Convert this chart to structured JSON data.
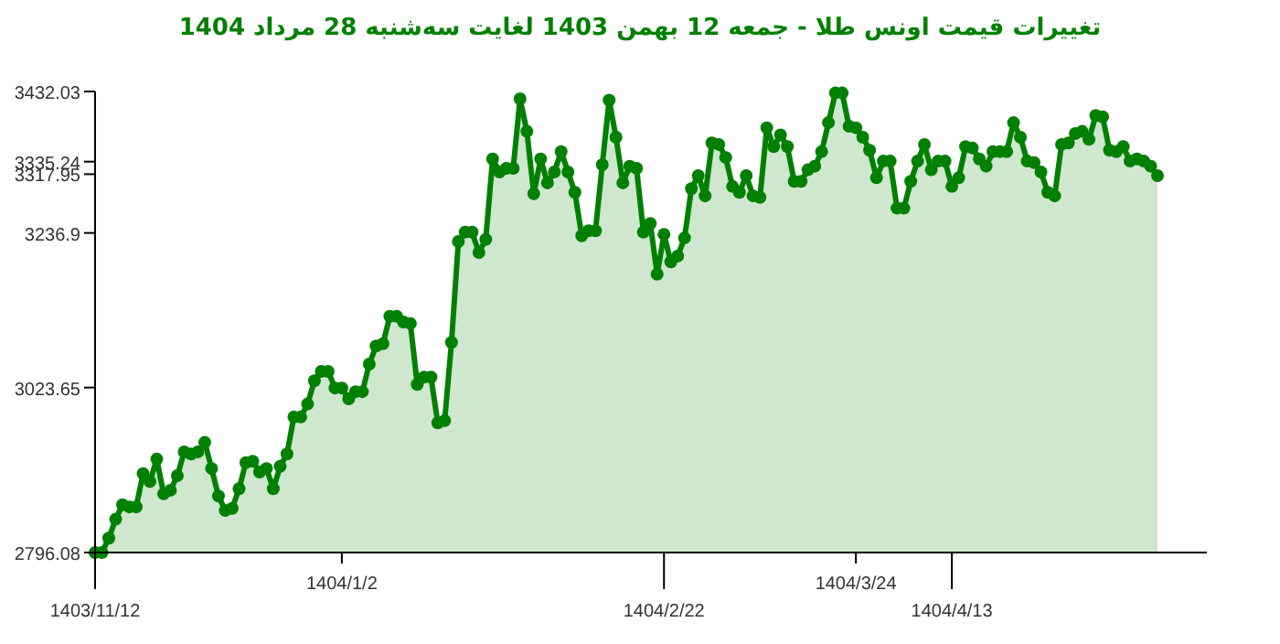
{
  "chart_data": {
    "type": "area",
    "title": "تغییرات قیمت اونس طلا - جمعه  12 بهمن 1403 لغایت سه‌شنبه  28 مرداد 1404",
    "categories": [
      "1403/11/12",
      null,
      null,
      null,
      null,
      null,
      null,
      null,
      null,
      null,
      null,
      null,
      null,
      null,
      null,
      null,
      null,
      null,
      null,
      null,
      null,
      null,
      null,
      null,
      null,
      null,
      null,
      null,
      null,
      null,
      null,
      null,
      null,
      null,
      null,
      null,
      "1404/1/2",
      null,
      null,
      null,
      null,
      null,
      null,
      null,
      null,
      null,
      null,
      null,
      null,
      null,
      null,
      null,
      null,
      null,
      null,
      null,
      null,
      null,
      null,
      null,
      null,
      null,
      null,
      null,
      null,
      null,
      null,
      null,
      null,
      null,
      null,
      null,
      null,
      null,
      null,
      null,
      null,
      null,
      null,
      null,
      null,
      null,
      null,
      "1404/2/22",
      null,
      null,
      null,
      null,
      null,
      null,
      null,
      null,
      null,
      null,
      null,
      null,
      null,
      null,
      null,
      null,
      null,
      null,
      null,
      null,
      null,
      null,
      null,
      null,
      null,
      null,
      null,
      "1404/3/24",
      null,
      null,
      null,
      null,
      null,
      null,
      null,
      null,
      null,
      null,
      null,
      null,
      null,
      "1404/4/13",
      null,
      null,
      null,
      null,
      null,
      null,
      null,
      null,
      null,
      null,
      null,
      null,
      null,
      null,
      null,
      null,
      null,
      null,
      null,
      null,
      null,
      null,
      null,
      null,
      null,
      null,
      null,
      null,
      null,
      null
    ],
    "series": [
      {
        "color": "#008000",
        "values": [
          2796.1,
          2796.1,
          2816,
          2842,
          2862,
          2859,
          2859,
          2905,
          2894,
          2925,
          2877,
          2882,
          2902,
          2935,
          2932,
          2935,
          2948,
          2912,
          2874,
          2854,
          2857,
          2884,
          2920,
          2922,
          2907,
          2912,
          2884,
          2915,
          2932,
          2983,
          2983,
          3001,
          3033,
          3046,
          3046,
          3023,
          3023,
          3008,
          3018,
          3018,
          3056,
          3081,
          3084,
          3122,
          3122,
          3114,
          3112,
          3028,
          3038,
          3038,
          2975,
          2978,
          3086,
          3225,
          3238,
          3238,
          3210,
          3228,
          3339,
          3321,
          3326,
          3326,
          3422,
          3377,
          3291,
          3339,
          3306,
          3321,
          3349,
          3321,
          3293,
          3233,
          3240,
          3240,
          3331,
          3420,
          3369,
          3306,
          3329,
          3326,
          3238,
          3250,
          3180,
          3235,
          3197,
          3205,
          3230,
          3298,
          3316,
          3288,
          3361,
          3359,
          3341,
          3301,
          3293,
          3316,
          3288,
          3286,
          3382,
          3356,
          3372,
          3356,
          3308,
          3308,
          3324,
          3329,
          3349,
          3389,
          3430,
          3430,
          3384,
          3382,
          3369,
          3351,
          3313,
          3336,
          3336,
          3271,
          3271,
          3308,
          3336,
          3359,
          3324,
          3336,
          3336,
          3301,
          3313,
          3356,
          3354,
          3339,
          3329,
          3349,
          3349,
          3349,
          3389,
          3369,
          3336,
          3334,
          3321,
          3293,
          3288,
          3359,
          3361,
          3374,
          3377,
          3366,
          3399,
          3397,
          3351,
          3349,
          3356,
          3336,
          3339,
          3336,
          3329,
          3316
        ]
      }
    ],
    "ylim": [
      2796.08,
      3432.03
    ],
    "yticks": [
      2796.08,
      3023.65,
      3236.9,
      3317.95,
      3335.24,
      3432.03
    ],
    "marker": "circle",
    "line_style": "solid"
  }
}
